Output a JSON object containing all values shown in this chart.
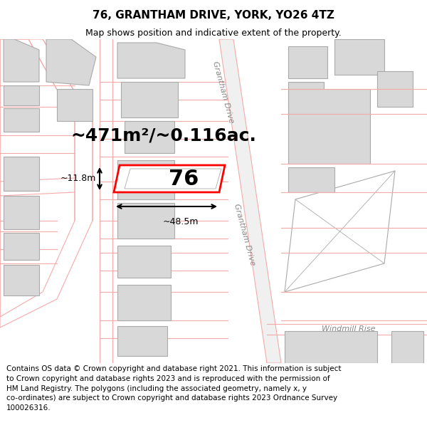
{
  "title": "76, GRANTHAM DRIVE, YORK, YO26 4TZ",
  "subtitle": "Map shows position and indicative extent of the property.",
  "footer": "Contains OS data © Crown copyright and database right 2021. This information is subject\nto Crown copyright and database rights 2023 and is reproduced with the permission of\nHM Land Registry. The polygons (including the associated geometry, namely x, y\nco-ordinates) are subject to Crown copyright and database rights 2023 Ordnance Survey\n100026316.",
  "background_color": "#ffffff",
  "building_fill": "#d8d8d8",
  "building_edge": "#aaaaaa",
  "road_line_color": "#f5aaaa",
  "highlight_color": "#ff0000",
  "street_label_color": "#888888",
  "area_label": "~471m²/~0.116ac.",
  "plot_label": "76",
  "dim_width": "~48.5m",
  "dim_height": "~11.8m",
  "title_fontsize": 11,
  "subtitle_fontsize": 9,
  "area_fontsize": 18,
  "plot_fontsize": 22,
  "dim_fontsize": 9,
  "street_fontsize": 8,
  "footer_fontsize": 7.5
}
